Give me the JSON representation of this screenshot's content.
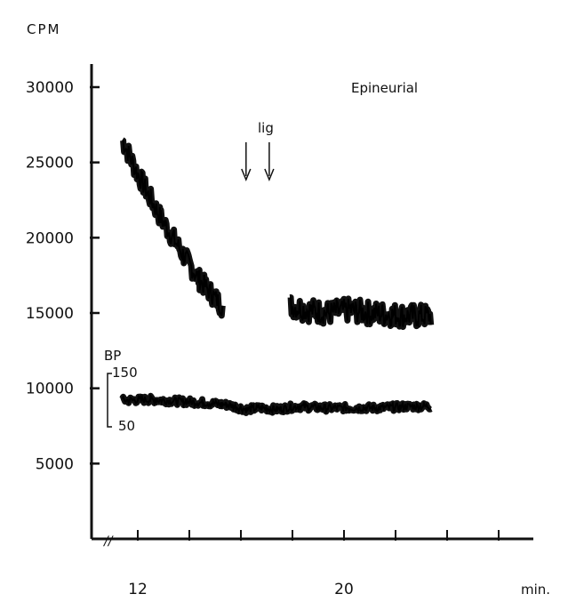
{
  "chart_data": {
    "type": "line",
    "title": "Epineurial",
    "ylabel": "CPM",
    "xlabel": "min.",
    "ylim": [
      0,
      30000
    ],
    "yticks": [
      "30000",
      "25000",
      "20000",
      "15000",
      "10000",
      "5000"
    ],
    "ytick_values": [
      30000,
      25000,
      20000,
      15000,
      10000,
      5000
    ],
    "xticks": [
      "12",
      "20"
    ],
    "xtick_values": [
      12,
      20
    ],
    "xlim": [
      10.5,
      26.5
    ],
    "series": [
      {
        "values_segment_1": [
          {
            "x": 11.4,
            "y": 26500
          },
          {
            "x": 11.9,
            "y": 24600
          },
          {
            "x": 12.4,
            "y": 22900
          },
          {
            "x": 12.9,
            "y": 21300
          },
          {
            "x": 13.4,
            "y": 19900
          },
          {
            "x": 13.9,
            "y": 18500
          },
          {
            "x": 14.4,
            "y": 17200
          },
          {
            "x": 14.9,
            "y": 16200
          },
          {
            "x": 15.3,
            "y": 15400
          }
        ],
        "values_segment_2": [
          {
            "x": 17.9,
            "y": 15500
          },
          {
            "x": 18.6,
            "y": 15200
          },
          {
            "x": 19.4,
            "y": 15000
          },
          {
            "x": 20.2,
            "y": 15200
          },
          {
            "x": 21.0,
            "y": 15000
          },
          {
            "x": 21.8,
            "y": 14900
          },
          {
            "x": 22.6,
            "y": 14800
          },
          {
            "x": 23.4,
            "y": 14800
          }
        ]
      },
      {
        "values": [
          {
            "x": 11.4,
            "y": 9200
          },
          {
            "x": 12.5,
            "y": 9250
          },
          {
            "x": 13.5,
            "y": 9150
          },
          {
            "x": 14.5,
            "y": 9050
          },
          {
            "x": 15.5,
            "y": 8900
          },
          {
            "x": 16.2,
            "y": 8600
          },
          {
            "x": 16.8,
            "y": 8700
          },
          {
            "x": 17.4,
            "y": 8600
          },
          {
            "x": 18.2,
            "y": 8800
          },
          {
            "x": 19.2,
            "y": 8700
          },
          {
            "x": 20.2,
            "y": 8700
          },
          {
            "x": 21.4,
            "y": 8700
          },
          {
            "x": 22.4,
            "y": 8800
          },
          {
            "x": 23.4,
            "y": 8800
          }
        ]
      }
    ],
    "annotations": {
      "ligature_label": "lig",
      "arrows_x": [
        16.2,
        17.1
      ],
      "bp_label": "BP",
      "bp_scale_top": "150",
      "bp_scale_bottom": "50"
    },
    "axis_break": "//",
    "grid": false
  }
}
